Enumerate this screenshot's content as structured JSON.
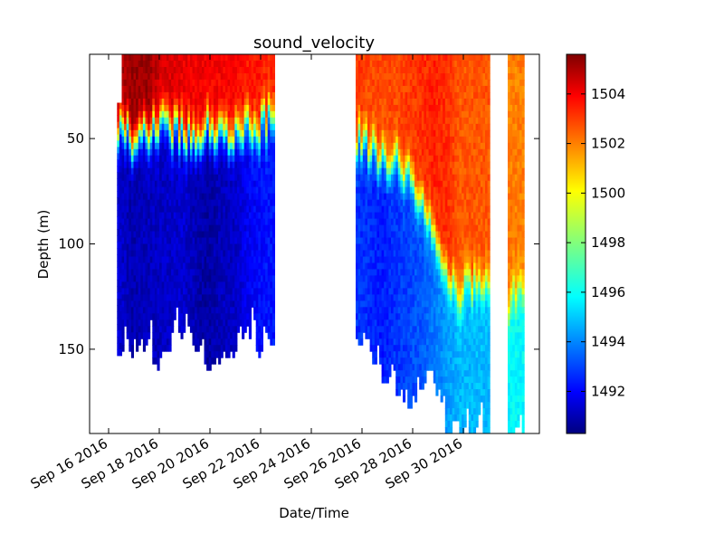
{
  "chart_data": {
    "type": "heatmap",
    "title": "sound_velocity",
    "xlabel": "Date/Time",
    "ylabel": "Depth (m)",
    "x_range": [
      "2016-09-15T06:00",
      "2016-10-03T00:00"
    ],
    "ylim": [
      190,
      10
    ],
    "y_inverted": true,
    "x_ticks": [
      {
        "date": "2016-09-16",
        "label": "Sep 16 2016"
      },
      {
        "date": "2016-09-18",
        "label": "Sep 18 2016"
      },
      {
        "date": "2016-09-20",
        "label": "Sep 20 2016"
      },
      {
        "date": "2016-09-22",
        "label": "Sep 22 2016"
      },
      {
        "date": "2016-09-24",
        "label": "Sep 24 2016"
      },
      {
        "date": "2016-09-26",
        "label": "Sep 26 2016"
      },
      {
        "date": "2016-09-28",
        "label": "Sep 28 2016"
      },
      {
        "date": "2016-09-30",
        "label": "Sep 30 2016"
      }
    ],
    "y_ticks": [
      {
        "value": 50,
        "label": "50"
      },
      {
        "value": 100,
        "label": "100"
      },
      {
        "value": 150,
        "label": "150"
      }
    ],
    "colorbar": {
      "colormap": "jet",
      "range": [
        1490.3,
        1505.6
      ],
      "ticks": [
        {
          "value": 1492,
          "label": "1492"
        },
        {
          "value": 1494,
          "label": "1494"
        },
        {
          "value": 1496,
          "label": "1496"
        },
        {
          "value": 1498,
          "label": "1498"
        },
        {
          "value": 1500,
          "label": "1500"
        },
        {
          "value": 1502,
          "label": "1502"
        },
        {
          "value": 1504,
          "label": "1504"
        }
      ]
    },
    "segments": [
      {
        "start": "2016-09-16T08:00",
        "end": "2016-09-22T12:00",
        "profiles": [
          {
            "day": 16.35,
            "max_depth": 151,
            "surface_sv": 1504.8,
            "thermocline_depth": 42,
            "deep_sv": 1491.5
          },
          {
            "day": 16.9,
            "max_depth": 152,
            "surface_sv": 1505.2,
            "thermocline_depth": 48,
            "deep_sv": 1491.0
          },
          {
            "day": 17.5,
            "max_depth": 150,
            "surface_sv": 1505.3,
            "thermocline_depth": 46,
            "deep_sv": 1491.2
          },
          {
            "day": 17.9,
            "max_depth": 158,
            "surface_sv": 1504.5,
            "thermocline_depth": 44,
            "deep_sv": 1491.3
          },
          {
            "day": 18.4,
            "max_depth": 148,
            "surface_sv": 1504.2,
            "thermocline_depth": 45,
            "deep_sv": 1491.4
          },
          {
            "day": 18.9,
            "max_depth": 142,
            "surface_sv": 1504.0,
            "thermocline_depth": 47,
            "deep_sv": 1491.5
          },
          {
            "day": 19.4,
            "max_depth": 150,
            "surface_sv": 1503.9,
            "thermocline_depth": 50,
            "deep_sv": 1491.0
          },
          {
            "day": 19.9,
            "max_depth": 160,
            "surface_sv": 1503.8,
            "thermocline_depth": 46,
            "deep_sv": 1490.8
          },
          {
            "day": 20.4,
            "max_depth": 155,
            "surface_sv": 1503.8,
            "thermocline_depth": 45,
            "deep_sv": 1491.2
          },
          {
            "day": 20.9,
            "max_depth": 152,
            "surface_sv": 1503.6,
            "thermocline_depth": 48,
            "deep_sv": 1491.3
          },
          {
            "day": 21.4,
            "max_depth": 140,
            "surface_sv": 1503.4,
            "thermocline_depth": 44,
            "deep_sv": 1492.0
          },
          {
            "day": 21.9,
            "max_depth": 152,
            "surface_sv": 1503.4,
            "thermocline_depth": 43,
            "deep_sv": 1492.3
          },
          {
            "day": 22.3,
            "max_depth": 146,
            "surface_sv": 1503.2,
            "thermocline_depth": 40,
            "deep_sv": 1492.5
          }
        ]
      },
      {
        "start": "2016-09-25T18:00",
        "end": "2016-10-01T00:00",
        "profiles": [
          {
            "day": 25.8,
            "max_depth": 145,
            "surface_sv": 1502.8,
            "thermocline_depth": 50,
            "deep_sv": 1493.0
          },
          {
            "day": 26.3,
            "max_depth": 152,
            "surface_sv": 1502.6,
            "thermocline_depth": 55,
            "deep_sv": 1492.8
          },
          {
            "day": 26.8,
            "max_depth": 165,
            "surface_sv": 1502.6,
            "thermocline_depth": 58,
            "deep_sv": 1492.6
          },
          {
            "day": 27.3,
            "max_depth": 170,
            "surface_sv": 1502.6,
            "thermocline_depth": 60,
            "deep_sv": 1493.0
          },
          {
            "day": 27.8,
            "max_depth": 180,
            "surface_sv": 1502.8,
            "thermocline_depth": 65,
            "deep_sv": 1493.2
          },
          {
            "day": 28.3,
            "max_depth": 168,
            "surface_sv": 1503.0,
            "thermocline_depth": 75,
            "deep_sv": 1493.5
          },
          {
            "day": 28.8,
            "max_depth": 165,
            "surface_sv": 1503.2,
            "thermocline_depth": 95,
            "deep_sv": 1494.0
          },
          {
            "day": 29.3,
            "max_depth": 190,
            "surface_sv": 1503.0,
            "thermocline_depth": 110,
            "deep_sv": 1494.5
          },
          {
            "day": 29.8,
            "max_depth": 190,
            "surface_sv": 1502.4,
            "thermocline_depth": 120,
            "deep_sv": 1495.0
          }
        ]
      },
      {
        "start": "2016-10-01T18:00",
        "end": "2016-10-02T08:00",
        "profiles": [
          {
            "day": 31.9,
            "max_depth": 190,
            "surface_sv": 1501.8,
            "thermocline_depth": 125,
            "deep_sv": 1496.0
          }
        ]
      }
    ]
  }
}
